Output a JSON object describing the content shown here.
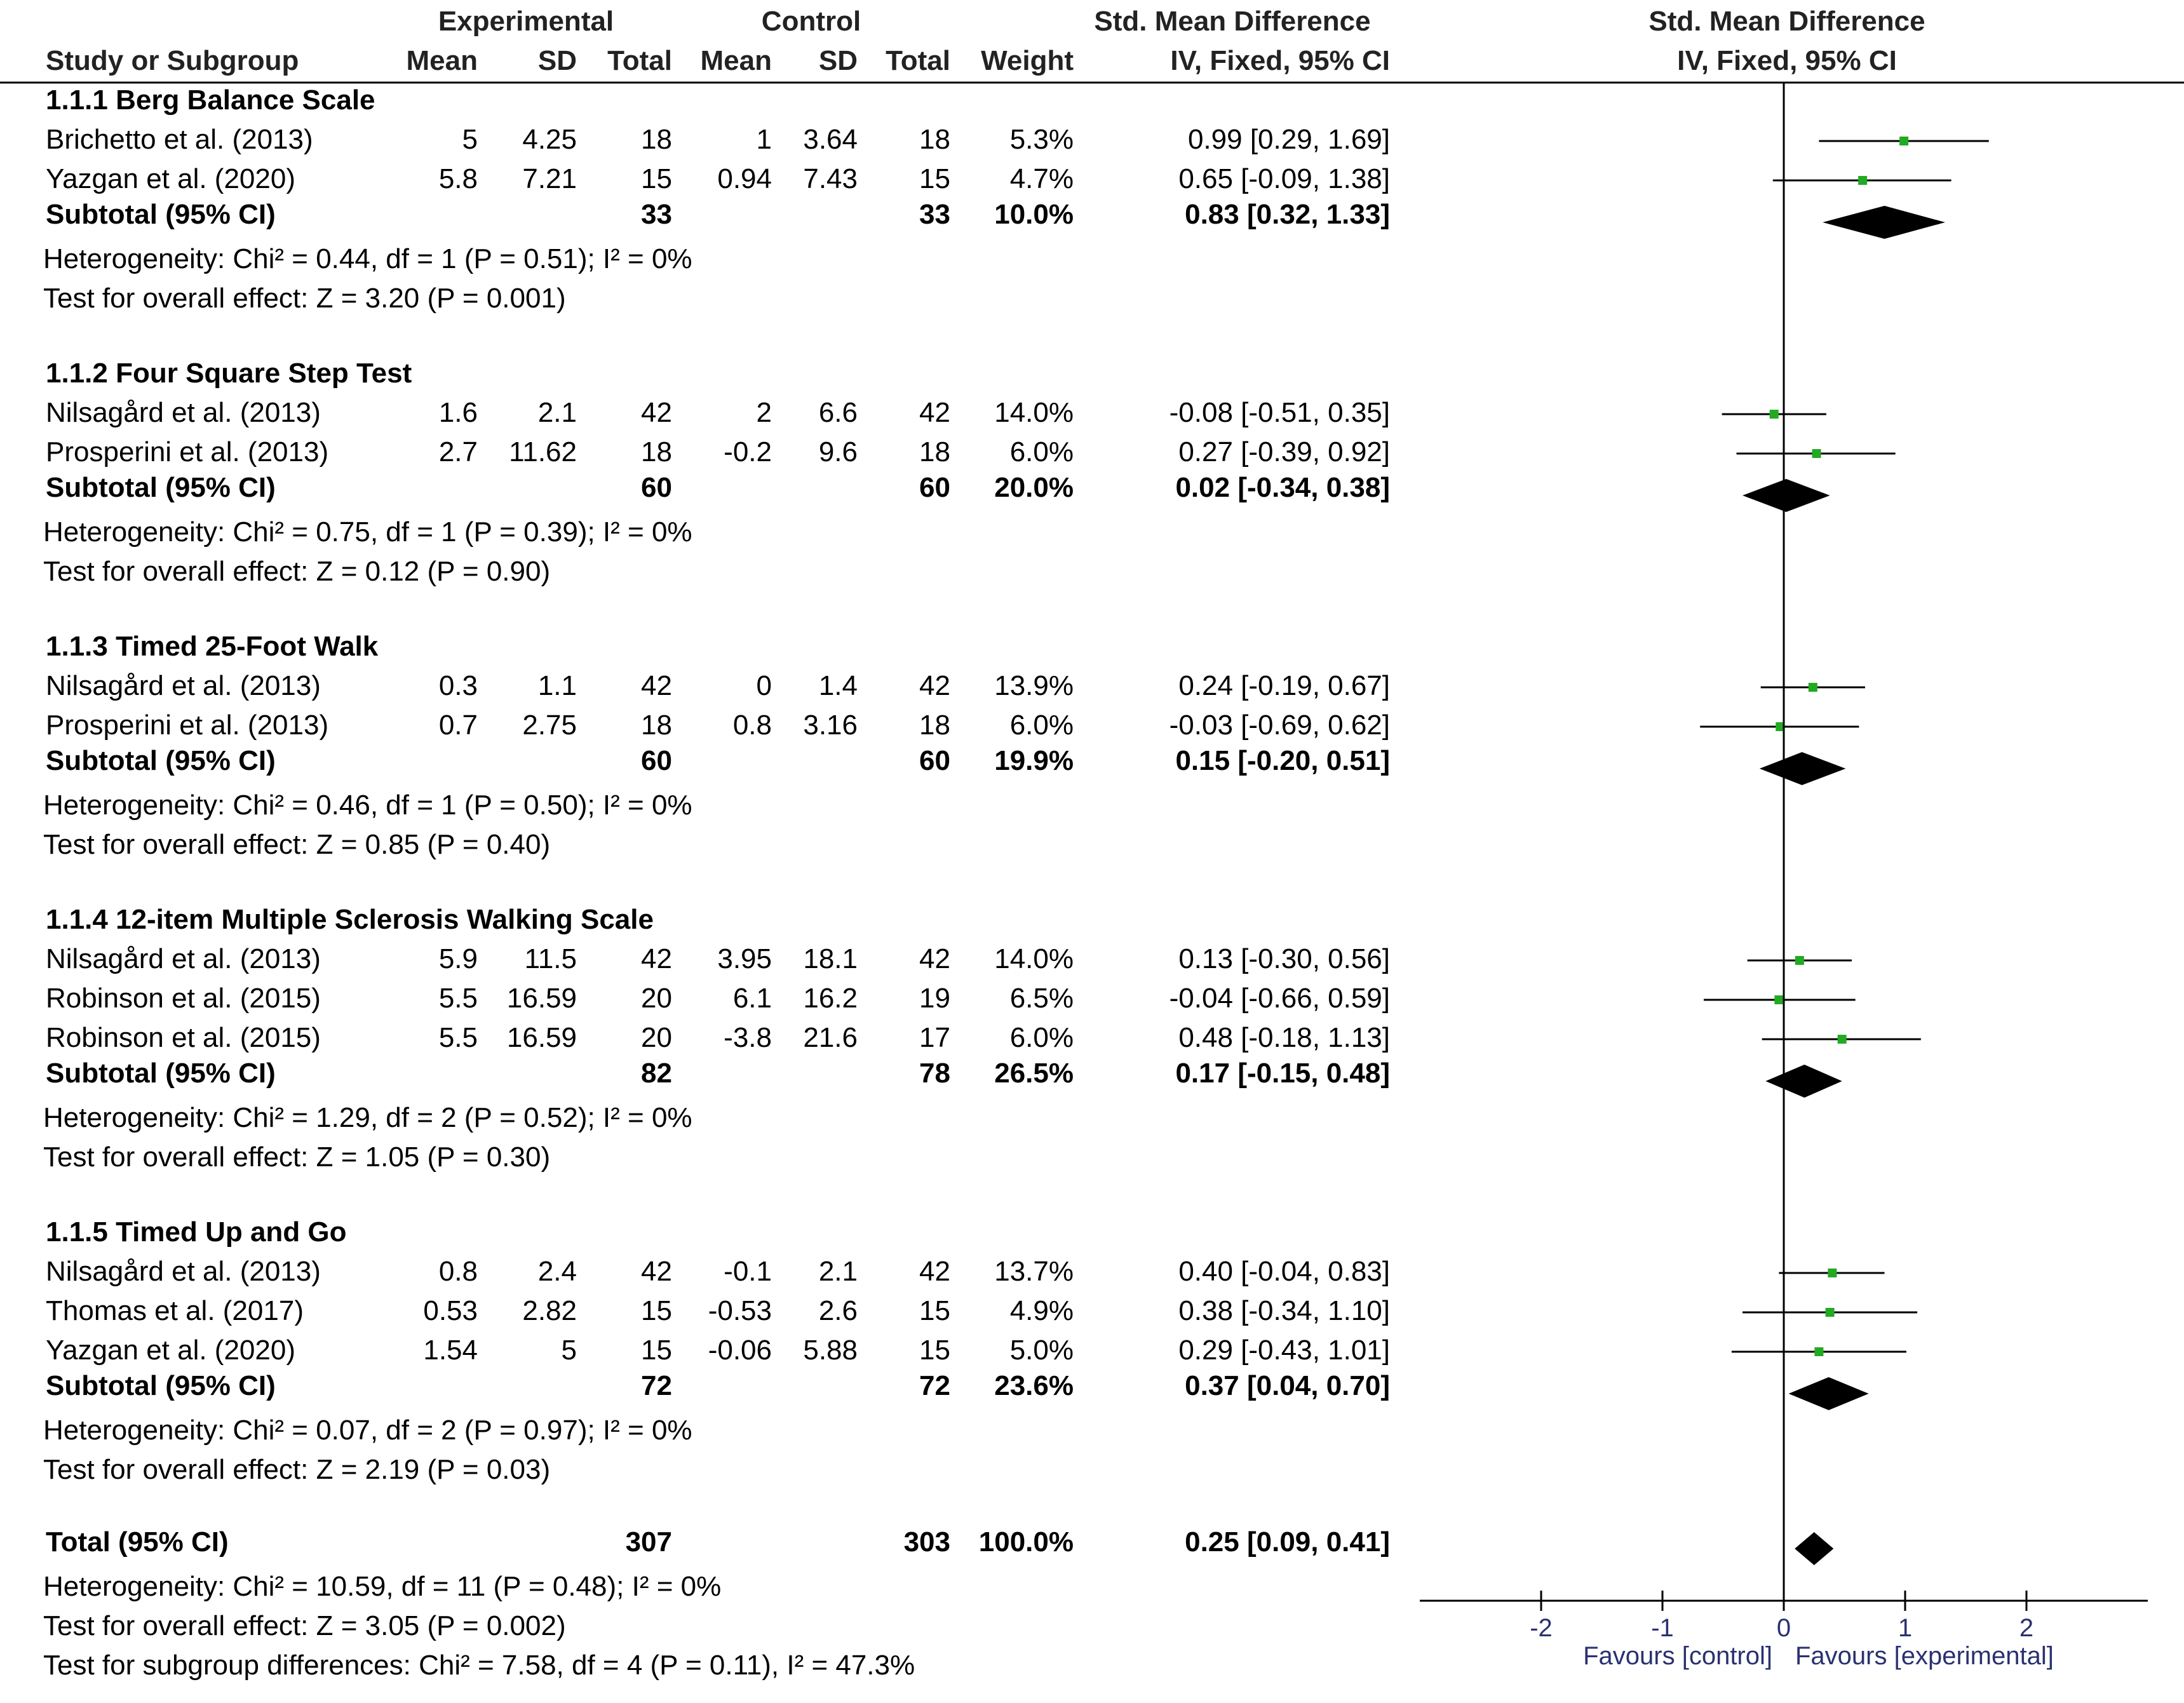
{
  "chart_data": {
    "type": "forest",
    "columns": {
      "experimental_group": "Experimental",
      "control_group": "Control",
      "smd_group": "Std. Mean Difference",
      "plot_group": "Std. Mean Difference",
      "study": "Study or Subgroup",
      "mean": "Mean",
      "sd": "SD",
      "total": "Total",
      "weight": "Weight",
      "method": "IV, Fixed, 95% CI"
    },
    "subgroups": [
      {
        "title": "1.1.1 Berg Balance Scale",
        "studies": [
          {
            "name": "Brichetto et al. (2013)",
            "e_mean": "5",
            "e_sd": "4.25",
            "e_n": "18",
            "c_mean": "1",
            "c_sd": "3.64",
            "c_n": "18",
            "weight": "5.3%",
            "ci": "0.99 [0.29, 1.69]",
            "est": 0.99,
            "lo": 0.29,
            "hi": 1.69
          },
          {
            "name": "Yazgan et al. (2020)",
            "e_mean": "5.8",
            "e_sd": "7.21",
            "e_n": "15",
            "c_mean": "0.94",
            "c_sd": "7.43",
            "c_n": "15",
            "weight": "4.7%",
            "ci": "0.65 [-0.09, 1.38]",
            "est": 0.65,
            "lo": -0.09,
            "hi": 1.38
          }
        ],
        "subtotal": {
          "label": "Subtotal (95% CI)",
          "e_n": "33",
          "c_n": "33",
          "weight": "10.0%",
          "ci": "0.83 [0.32, 1.33]",
          "est": 0.83,
          "lo": 0.32,
          "hi": 1.33
        },
        "heterogeneity": "Heterogeneity: Chi² = 0.44, df = 1 (P = 0.51); I² = 0%",
        "overall": "Test for overall effect: Z = 3.20 (P = 0.001)"
      },
      {
        "title": "1.1.2 Four Square Step Test",
        "studies": [
          {
            "name": "Nilsagård et al. (2013)",
            "e_mean": "1.6",
            "e_sd": "2.1",
            "e_n": "42",
            "c_mean": "2",
            "c_sd": "6.6",
            "c_n": "42",
            "weight": "14.0%",
            "ci": "-0.08 [-0.51, 0.35]",
            "est": -0.08,
            "lo": -0.51,
            "hi": 0.35
          },
          {
            "name": "Prosperini et al. (2013)",
            "e_mean": "2.7",
            "e_sd": "11.62",
            "e_n": "18",
            "c_mean": "-0.2",
            "c_sd": "9.6",
            "c_n": "18",
            "weight": "6.0%",
            "ci": "0.27 [-0.39, 0.92]",
            "est": 0.27,
            "lo": -0.39,
            "hi": 0.92
          }
        ],
        "subtotal": {
          "label": "Subtotal (95% CI)",
          "e_n": "60",
          "c_n": "60",
          "weight": "20.0%",
          "ci": "0.02 [-0.34, 0.38]",
          "est": 0.02,
          "lo": -0.34,
          "hi": 0.38
        },
        "heterogeneity": "Heterogeneity: Chi² = 0.75, df = 1 (P = 0.39); I² = 0%",
        "overall": "Test for overall effect: Z = 0.12 (P = 0.90)"
      },
      {
        "title": "1.1.3 Timed 25-Foot Walk",
        "studies": [
          {
            "name": "Nilsagård et al. (2013)",
            "e_mean": "0.3",
            "e_sd": "1.1",
            "e_n": "42",
            "c_mean": "0",
            "c_sd": "1.4",
            "c_n": "42",
            "weight": "13.9%",
            "ci": "0.24 [-0.19, 0.67]",
            "est": 0.24,
            "lo": -0.19,
            "hi": 0.67
          },
          {
            "name": "Prosperini et al. (2013)",
            "e_mean": "0.7",
            "e_sd": "2.75",
            "e_n": "18",
            "c_mean": "0.8",
            "c_sd": "3.16",
            "c_n": "18",
            "weight": "6.0%",
            "ci": "-0.03 [-0.69, 0.62]",
            "est": -0.03,
            "lo": -0.69,
            "hi": 0.62
          }
        ],
        "subtotal": {
          "label": "Subtotal (95% CI)",
          "e_n": "60",
          "c_n": "60",
          "weight": "19.9%",
          "ci": "0.15 [-0.20, 0.51]",
          "est": 0.15,
          "lo": -0.2,
          "hi": 0.51
        },
        "heterogeneity": "Heterogeneity: Chi² = 0.46, df = 1 (P = 0.50); I² = 0%",
        "overall": "Test for overall effect: Z = 0.85 (P = 0.40)"
      },
      {
        "title": "1.1.4 12-item Multiple Sclerosis Walking Scale",
        "studies": [
          {
            "name": "Nilsagård et al. (2013)",
            "e_mean": "5.9",
            "e_sd": "11.5",
            "e_n": "42",
            "c_mean": "3.95",
            "c_sd": "18.1",
            "c_n": "42",
            "weight": "14.0%",
            "ci": "0.13 [-0.30, 0.56]",
            "est": 0.13,
            "lo": -0.3,
            "hi": 0.56
          },
          {
            "name": "Robinson et al. (2015)",
            "e_mean": "5.5",
            "e_sd": "16.59",
            "e_n": "20",
            "c_mean": "6.1",
            "c_sd": "16.2",
            "c_n": "19",
            "weight": "6.5%",
            "ci": "-0.04 [-0.66, 0.59]",
            "est": -0.04,
            "lo": -0.66,
            "hi": 0.59
          },
          {
            "name": "Robinson et al. (2015)",
            "e_mean": "5.5",
            "e_sd": "16.59",
            "e_n": "20",
            "c_mean": "-3.8",
            "c_sd": "21.6",
            "c_n": "17",
            "weight": "6.0%",
            "ci": "0.48 [-0.18, 1.13]",
            "est": 0.48,
            "lo": -0.18,
            "hi": 1.13
          }
        ],
        "subtotal": {
          "label": "Subtotal (95% CI)",
          "e_n": "82",
          "c_n": "78",
          "weight": "26.5%",
          "ci": "0.17 [-0.15, 0.48]",
          "est": 0.17,
          "lo": -0.15,
          "hi": 0.48
        },
        "heterogeneity": "Heterogeneity: Chi² = 1.29, df = 2 (P = 0.52); I² = 0%",
        "overall": "Test for overall effect: Z = 1.05 (P = 0.30)"
      },
      {
        "title": "1.1.5 Timed Up and Go",
        "studies": [
          {
            "name": "Nilsagård et al. (2013)",
            "e_mean": "0.8",
            "e_sd": "2.4",
            "e_n": "42",
            "c_mean": "-0.1",
            "c_sd": "2.1",
            "c_n": "42",
            "weight": "13.7%",
            "ci": "0.40 [-0.04, 0.83]",
            "est": 0.4,
            "lo": -0.04,
            "hi": 0.83
          },
          {
            "name": "Thomas et al. (2017)",
            "e_mean": "0.53",
            "e_sd": "2.82",
            "e_n": "15",
            "c_mean": "-0.53",
            "c_sd": "2.6",
            "c_n": "15",
            "weight": "4.9%",
            "ci": "0.38 [-0.34, 1.10]",
            "est": 0.38,
            "lo": -0.34,
            "hi": 1.1
          },
          {
            "name": "Yazgan et al. (2020)",
            "e_mean": "1.54",
            "e_sd": "5",
            "e_n": "15",
            "c_mean": "-0.06",
            "c_sd": "5.88",
            "c_n": "15",
            "weight": "5.0%",
            "ci": "0.29 [-0.43, 1.01]",
            "est": 0.29,
            "lo": -0.43,
            "hi": 1.01
          }
        ],
        "subtotal": {
          "label": "Subtotal (95% CI)",
          "e_n": "72",
          "c_n": "72",
          "weight": "23.6%",
          "ci": "0.37 [0.04, 0.70]",
          "est": 0.37,
          "lo": 0.04,
          "hi": 0.7
        },
        "heterogeneity": "Heterogeneity: Chi² = 0.07, df = 2 (P = 0.97); I² = 0%",
        "overall": "Test for overall effect: Z = 2.19 (P = 0.03)"
      }
    ],
    "total": {
      "label": "Total (95% CI)",
      "e_n": "307",
      "c_n": "303",
      "weight": "100.0%",
      "ci": "0.25 [0.09, 0.41]",
      "est": 0.25,
      "lo": 0.09,
      "hi": 0.41,
      "heterogeneity": "Heterogeneity: Chi² = 10.59, df = 11 (P = 0.48); I² = 0%",
      "overall": "Test for overall effect: Z = 3.05 (P = 0.002)",
      "subgroup_diff": "Test for subgroup differences: Chi² = 7.58, df = 4 (P = 0.11), I² = 47.3%"
    },
    "axis": {
      "xlim": [
        -3,
        3
      ],
      "ticks": [
        {
          "value": -2,
          "label": "-2"
        },
        {
          "value": -1,
          "label": "-1"
        },
        {
          "value": 0,
          "label": "0"
        },
        {
          "value": 1,
          "label": "1"
        },
        {
          "value": 2,
          "label": "2"
        }
      ],
      "favours_left": "Favours [control]",
      "favours_right": "Favours [experimental]"
    },
    "colors": {
      "study_marker": "#22aa22",
      "diamond": "#000000",
      "text": "#000000",
      "axis_text": "#2a3170"
    }
  }
}
